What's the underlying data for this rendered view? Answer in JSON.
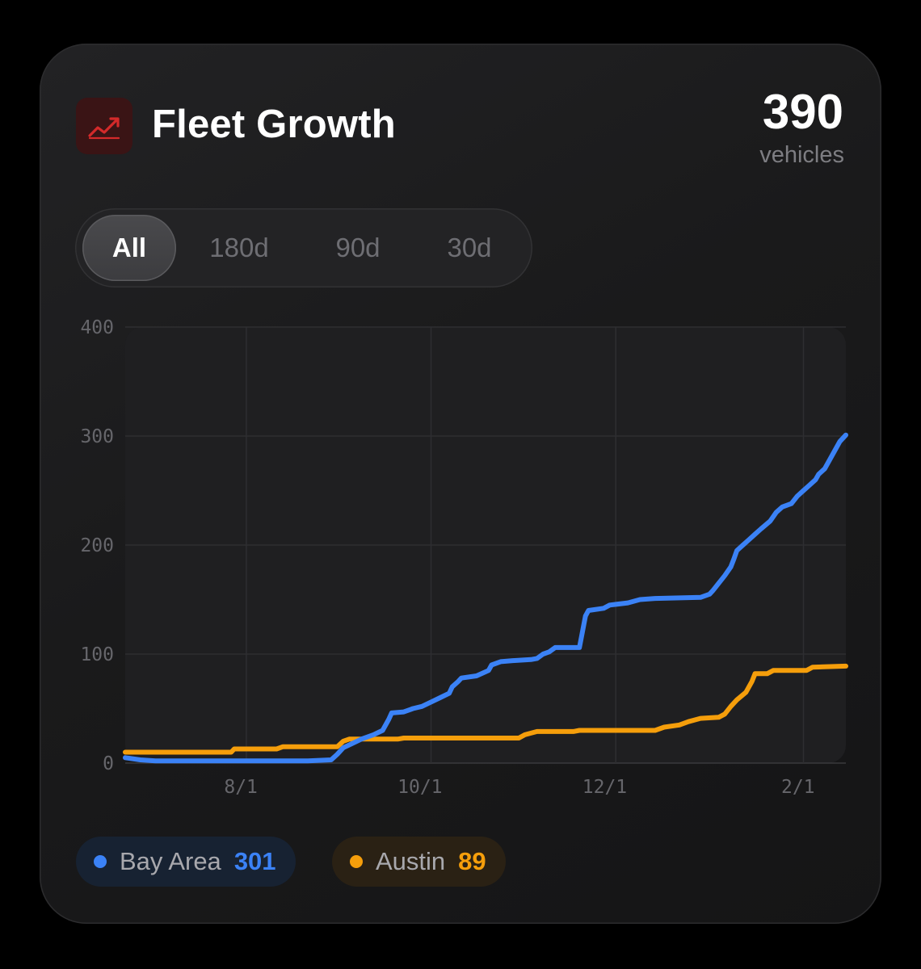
{
  "header": {
    "title": "Fleet Growth",
    "icon": "trending-up-icon",
    "total_value": "390",
    "total_unit": "vehicles"
  },
  "range_tabs": {
    "selected": "All",
    "items": [
      "All",
      "180d",
      "90d",
      "30d"
    ]
  },
  "colors": {
    "accent_red": "#d42a2a",
    "bay_area": "#3b82f6",
    "austin": "#f59e0b"
  },
  "legend": [
    {
      "name": "Bay Area",
      "value": "301",
      "color": "#3b82f6"
    },
    {
      "name": "Austin",
      "value": "89",
      "color": "#f59e0b"
    }
  ],
  "chart_data": {
    "type": "line",
    "title": "Fleet Growth",
    "xlabel": "",
    "ylabel": "",
    "ylim": [
      0,
      400
    ],
    "yticks": [
      0,
      100,
      200,
      300,
      400
    ],
    "xlim": [
      0,
      238
    ],
    "xticks": [
      {
        "label": "8/1",
        "x": 40
      },
      {
        "label": "10/1",
        "x": 101
      },
      {
        "label": "12/1",
        "x": 162
      },
      {
        "label": "2/1",
        "x": 224
      }
    ],
    "grid": true,
    "legend_position": "bottom",
    "series": [
      {
        "name": "Bay Area",
        "color": "#3b82f6",
        "points": [
          [
            0,
            5
          ],
          [
            5,
            3
          ],
          [
            10,
            2
          ],
          [
            30,
            2
          ],
          [
            55,
            2
          ],
          [
            60,
            2
          ],
          [
            68,
            3
          ],
          [
            70,
            8
          ],
          [
            72,
            14
          ],
          [
            75,
            18
          ],
          [
            78,
            22
          ],
          [
            82,
            26
          ],
          [
            85,
            30
          ],
          [
            87,
            40
          ],
          [
            88,
            46
          ],
          [
            92,
            47
          ],
          [
            95,
            50
          ],
          [
            98,
            52
          ],
          [
            101,
            56
          ],
          [
            104,
            60
          ],
          [
            107,
            64
          ],
          [
            108,
            70
          ],
          [
            110,
            75
          ],
          [
            111,
            78
          ],
          [
            116,
            80
          ],
          [
            120,
            85
          ],
          [
            121,
            90
          ],
          [
            124,
            93
          ],
          [
            128,
            94
          ],
          [
            134,
            95
          ],
          [
            136,
            96
          ],
          [
            138,
            100
          ],
          [
            140,
            102
          ],
          [
            142,
            106
          ],
          [
            150,
            106
          ],
          [
            152,
            135
          ],
          [
            153,
            140
          ],
          [
            158,
            142
          ],
          [
            160,
            145
          ],
          [
            166,
            147
          ],
          [
            170,
            150
          ],
          [
            175,
            151
          ],
          [
            190,
            152
          ],
          [
            193,
            155
          ],
          [
            194,
            158
          ],
          [
            196,
            165
          ],
          [
            198,
            172
          ],
          [
            200,
            180
          ],
          [
            201,
            187
          ],
          [
            202,
            195
          ],
          [
            204,
            200
          ],
          [
            206,
            205
          ],
          [
            208,
            210
          ],
          [
            210,
            215
          ],
          [
            213,
            222
          ],
          [
            215,
            230
          ],
          [
            217,
            235
          ],
          [
            220,
            238
          ],
          [
            222,
            245
          ],
          [
            224,
            250
          ],
          [
            226,
            255
          ],
          [
            228,
            260
          ],
          [
            229,
            265
          ],
          [
            231,
            270
          ],
          [
            233,
            280
          ],
          [
            235,
            290
          ],
          [
            236,
            295
          ],
          [
            238,
            301
          ]
        ]
      },
      {
        "name": "Austin",
        "color": "#f59e0b",
        "points": [
          [
            0,
            10
          ],
          [
            35,
            10
          ],
          [
            36,
            13
          ],
          [
            50,
            13
          ],
          [
            52,
            15
          ],
          [
            70,
            15
          ],
          [
            72,
            20
          ],
          [
            74,
            22
          ],
          [
            90,
            22
          ],
          [
            92,
            23
          ],
          [
            130,
            23
          ],
          [
            132,
            26
          ],
          [
            136,
            29
          ],
          [
            148,
            29
          ],
          [
            150,
            30
          ],
          [
            175,
            30
          ],
          [
            178,
            33
          ],
          [
            183,
            35
          ],
          [
            186,
            38
          ],
          [
            190,
            41
          ],
          [
            196,
            42
          ],
          [
            198,
            45
          ],
          [
            200,
            52
          ],
          [
            202,
            58
          ],
          [
            205,
            65
          ],
          [
            207,
            75
          ],
          [
            208,
            82
          ],
          [
            212,
            82
          ],
          [
            214,
            85
          ],
          [
            225,
            85
          ],
          [
            227,
            88
          ],
          [
            238,
            89
          ]
        ]
      }
    ]
  }
}
